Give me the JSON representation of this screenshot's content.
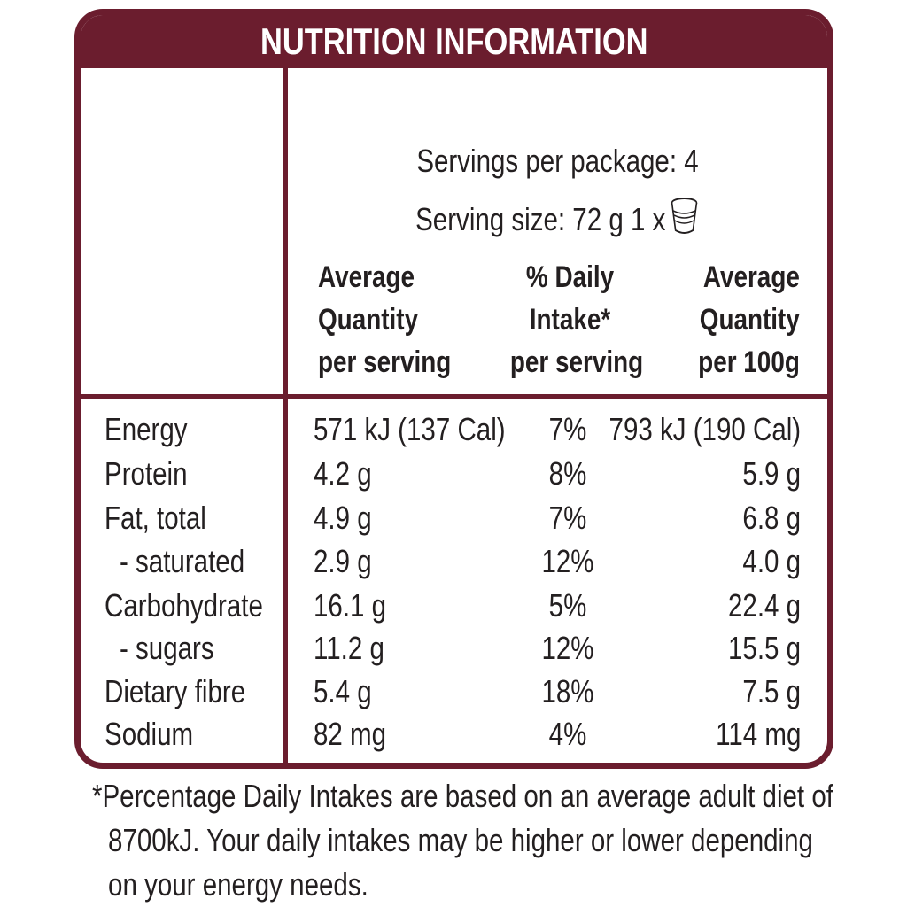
{
  "title": "NUTRITION INFORMATION",
  "servings_per_package": "Servings per package: 4",
  "serving_size": "Serving size: 72 g  1 x",
  "serving_icon": "yogurt-cup-icon",
  "columns": {
    "per_serving": [
      "Average",
      "Quantity",
      "per serving"
    ],
    "daily_intake": [
      "% Daily",
      "Intake*",
      "per serving"
    ],
    "per_100g": [
      "Average",
      "Quantity",
      "per 100g"
    ]
  },
  "rows": [
    {
      "name": "Energy",
      "per_serving": "571 kJ (137 Cal)",
      "daily_intake": "7%",
      "per_100g": "793 kJ (190 Cal)"
    },
    {
      "name": "Protein",
      "per_serving": "4.2 g",
      "daily_intake": "8%",
      "per_100g": "5.9 g"
    },
    {
      "name": "Fat, total",
      "per_serving": "4.9 g",
      "daily_intake": "7%",
      "per_100g": "6.8 g"
    },
    {
      "name": "- saturated",
      "per_serving": "2.9 g",
      "daily_intake": "12%",
      "per_100g": "4.0 g"
    },
    {
      "name": "Carbohydrate",
      "per_serving": "16.1 g",
      "daily_intake": "5%",
      "per_100g": "22.4 g"
    },
    {
      "name": "- sugars",
      "per_serving": "11.2 g",
      "daily_intake": "12%",
      "per_100g": "15.5 g"
    },
    {
      "name": "Dietary fibre",
      "per_serving": "5.4 g",
      "daily_intake": "18%",
      "per_100g": "7.5 g"
    },
    {
      "name": "Sodium",
      "per_serving": "82 mg",
      "daily_intake": "4%",
      "per_100g": "114 mg"
    }
  ],
  "footnote": [
    "*Percentage Daily Intakes are based on an average adult diet of",
    "8700kJ. Your daily intakes may be higher or lower depending",
    "on your energy needs."
  ],
  "colors": {
    "border": "#6b1d2e",
    "text": "#231f20"
  }
}
